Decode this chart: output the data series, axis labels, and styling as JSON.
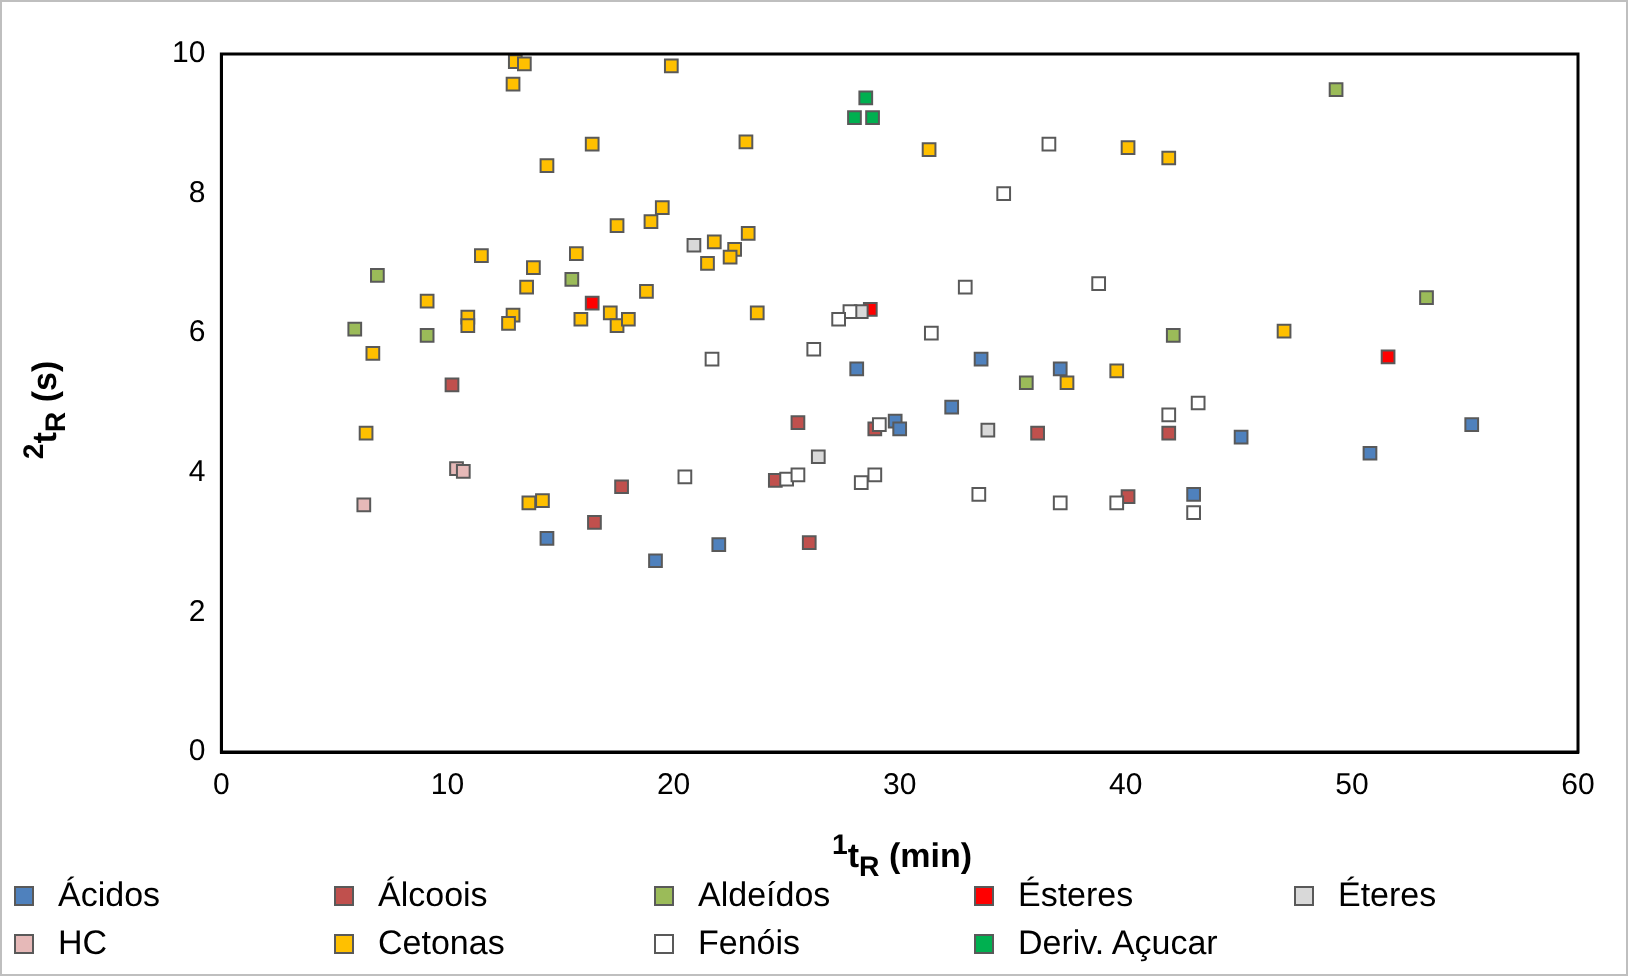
{
  "chart_data": {
    "type": "scatter",
    "xlabel": "$^{1}$t$_{R}$ (min)",
    "ylabel": "$^{2}$t$_{R}$ (s)",
    "xlim": [
      0,
      60
    ],
    "xticks": [
      0,
      10,
      20,
      30,
      40,
      50,
      60
    ],
    "ylim": [
      0,
      10
    ],
    "yticks": [
      0,
      2,
      4,
      6,
      8,
      10
    ],
    "grid": false,
    "legend": "bottom",
    "marker": "square",
    "series": [
      {
        "name": "Ácidos",
        "color": "#4f81bd",
        "x": [
          28.1,
          33.6,
          37.1,
          32.3,
          29.8,
          30.0,
          22.0,
          14.4,
          19.2,
          45.1,
          50.8,
          55.3,
          43.0
        ],
        "values": [
          5.49,
          5.63,
          5.49,
          4.94,
          4.74,
          4.63,
          2.97,
          3.06,
          2.74,
          4.51,
          4.28,
          4.69,
          3.69
        ]
      },
      {
        "name": "Álcoois",
        "color": "#c0504d",
        "x": [
          10.2,
          17.7,
          16.5,
          25.5,
          28.9,
          36.1,
          41.9,
          24.5,
          26.0,
          40.1
        ],
        "values": [
          5.26,
          3.8,
          3.29,
          4.72,
          4.63,
          4.57,
          4.57,
          3.89,
          3.0,
          3.66
        ]
      },
      {
        "name": "Aldeídos",
        "color": "#9bbb59",
        "x": [
          6.9,
          5.9,
          9.1,
          15.5,
          35.6,
          42.1,
          49.3,
          53.3
        ],
        "values": [
          6.83,
          6.06,
          5.97,
          6.77,
          5.29,
          5.97,
          9.49,
          6.51
        ]
      },
      {
        "name": "Ésteres",
        "color": "#ff0000",
        "x": [
          16.4,
          28.7,
          51.6
        ],
        "values": [
          6.43,
          6.34,
          5.66
        ]
      },
      {
        "name": "Éteres",
        "color": "#d9d9d9",
        "x": [
          20.9,
          28.3,
          26.4,
          33.9
        ],
        "values": [
          7.26,
          6.31,
          4.23,
          4.61
        ]
      },
      {
        "name": "HC",
        "color": "#e6b9b8",
        "x": [
          6.3,
          10.4,
          10.7
        ],
        "values": [
          3.54,
          4.06,
          4.02
        ]
      },
      {
        "name": "Cetonas",
        "color": "#ffc000",
        "x": [
          13.0,
          13.4,
          12.9,
          19.9,
          16.4,
          14.4,
          19.5,
          19.0,
          17.5,
          11.5,
          15.7,
          13.8,
          13.5,
          18.8,
          9.1,
          10.9,
          10.9,
          12.9,
          12.7,
          15.9,
          17.2,
          17.5,
          18.0,
          6.7,
          6.4,
          13.6,
          14.2,
          23.2,
          31.3,
          40.1,
          41.9,
          21.8,
          23.3,
          22.7,
          22.5,
          21.5,
          23.7,
          37.4,
          39.6,
          47.0
        ],
        "values": [
          9.89,
          9.86,
          9.57,
          9.83,
          8.71,
          8.4,
          7.8,
          7.6,
          7.54,
          7.11,
          7.14,
          6.94,
          6.66,
          6.6,
          6.46,
          6.23,
          6.11,
          6.26,
          6.14,
          6.2,
          6.29,
          6.11,
          6.2,
          5.71,
          4.57,
          3.57,
          3.6,
          8.74,
          8.63,
          8.66,
          8.51,
          7.31,
          7.43,
          7.2,
          7.09,
          7.0,
          6.29,
          5.29,
          5.46,
          6.03
        ]
      },
      {
        "name": "Fenóis",
        "color": "#ffffff",
        "x": [
          36.6,
          34.6,
          32.9,
          38.8,
          27.8,
          27.3,
          31.4,
          21.7,
          26.2,
          29.1,
          41.9,
          43.2,
          20.5,
          25.0,
          25.5,
          28.3,
          28.9,
          33.5,
          37.1,
          39.6,
          43.0
        ],
        "values": [
          8.71,
          8.0,
          6.66,
          6.71,
          6.31,
          6.2,
          6.0,
          5.63,
          5.77,
          4.69,
          4.83,
          5.0,
          3.94,
          3.91,
          3.97,
          3.86,
          3.97,
          3.69,
          3.57,
          3.57,
          3.43
        ]
      },
      {
        "name": "Deriv. Açucar",
        "color": "#00b050",
        "x": [
          28.5,
          28.0,
          28.8
        ],
        "values": [
          9.37,
          9.09,
          9.09
        ]
      }
    ]
  }
}
